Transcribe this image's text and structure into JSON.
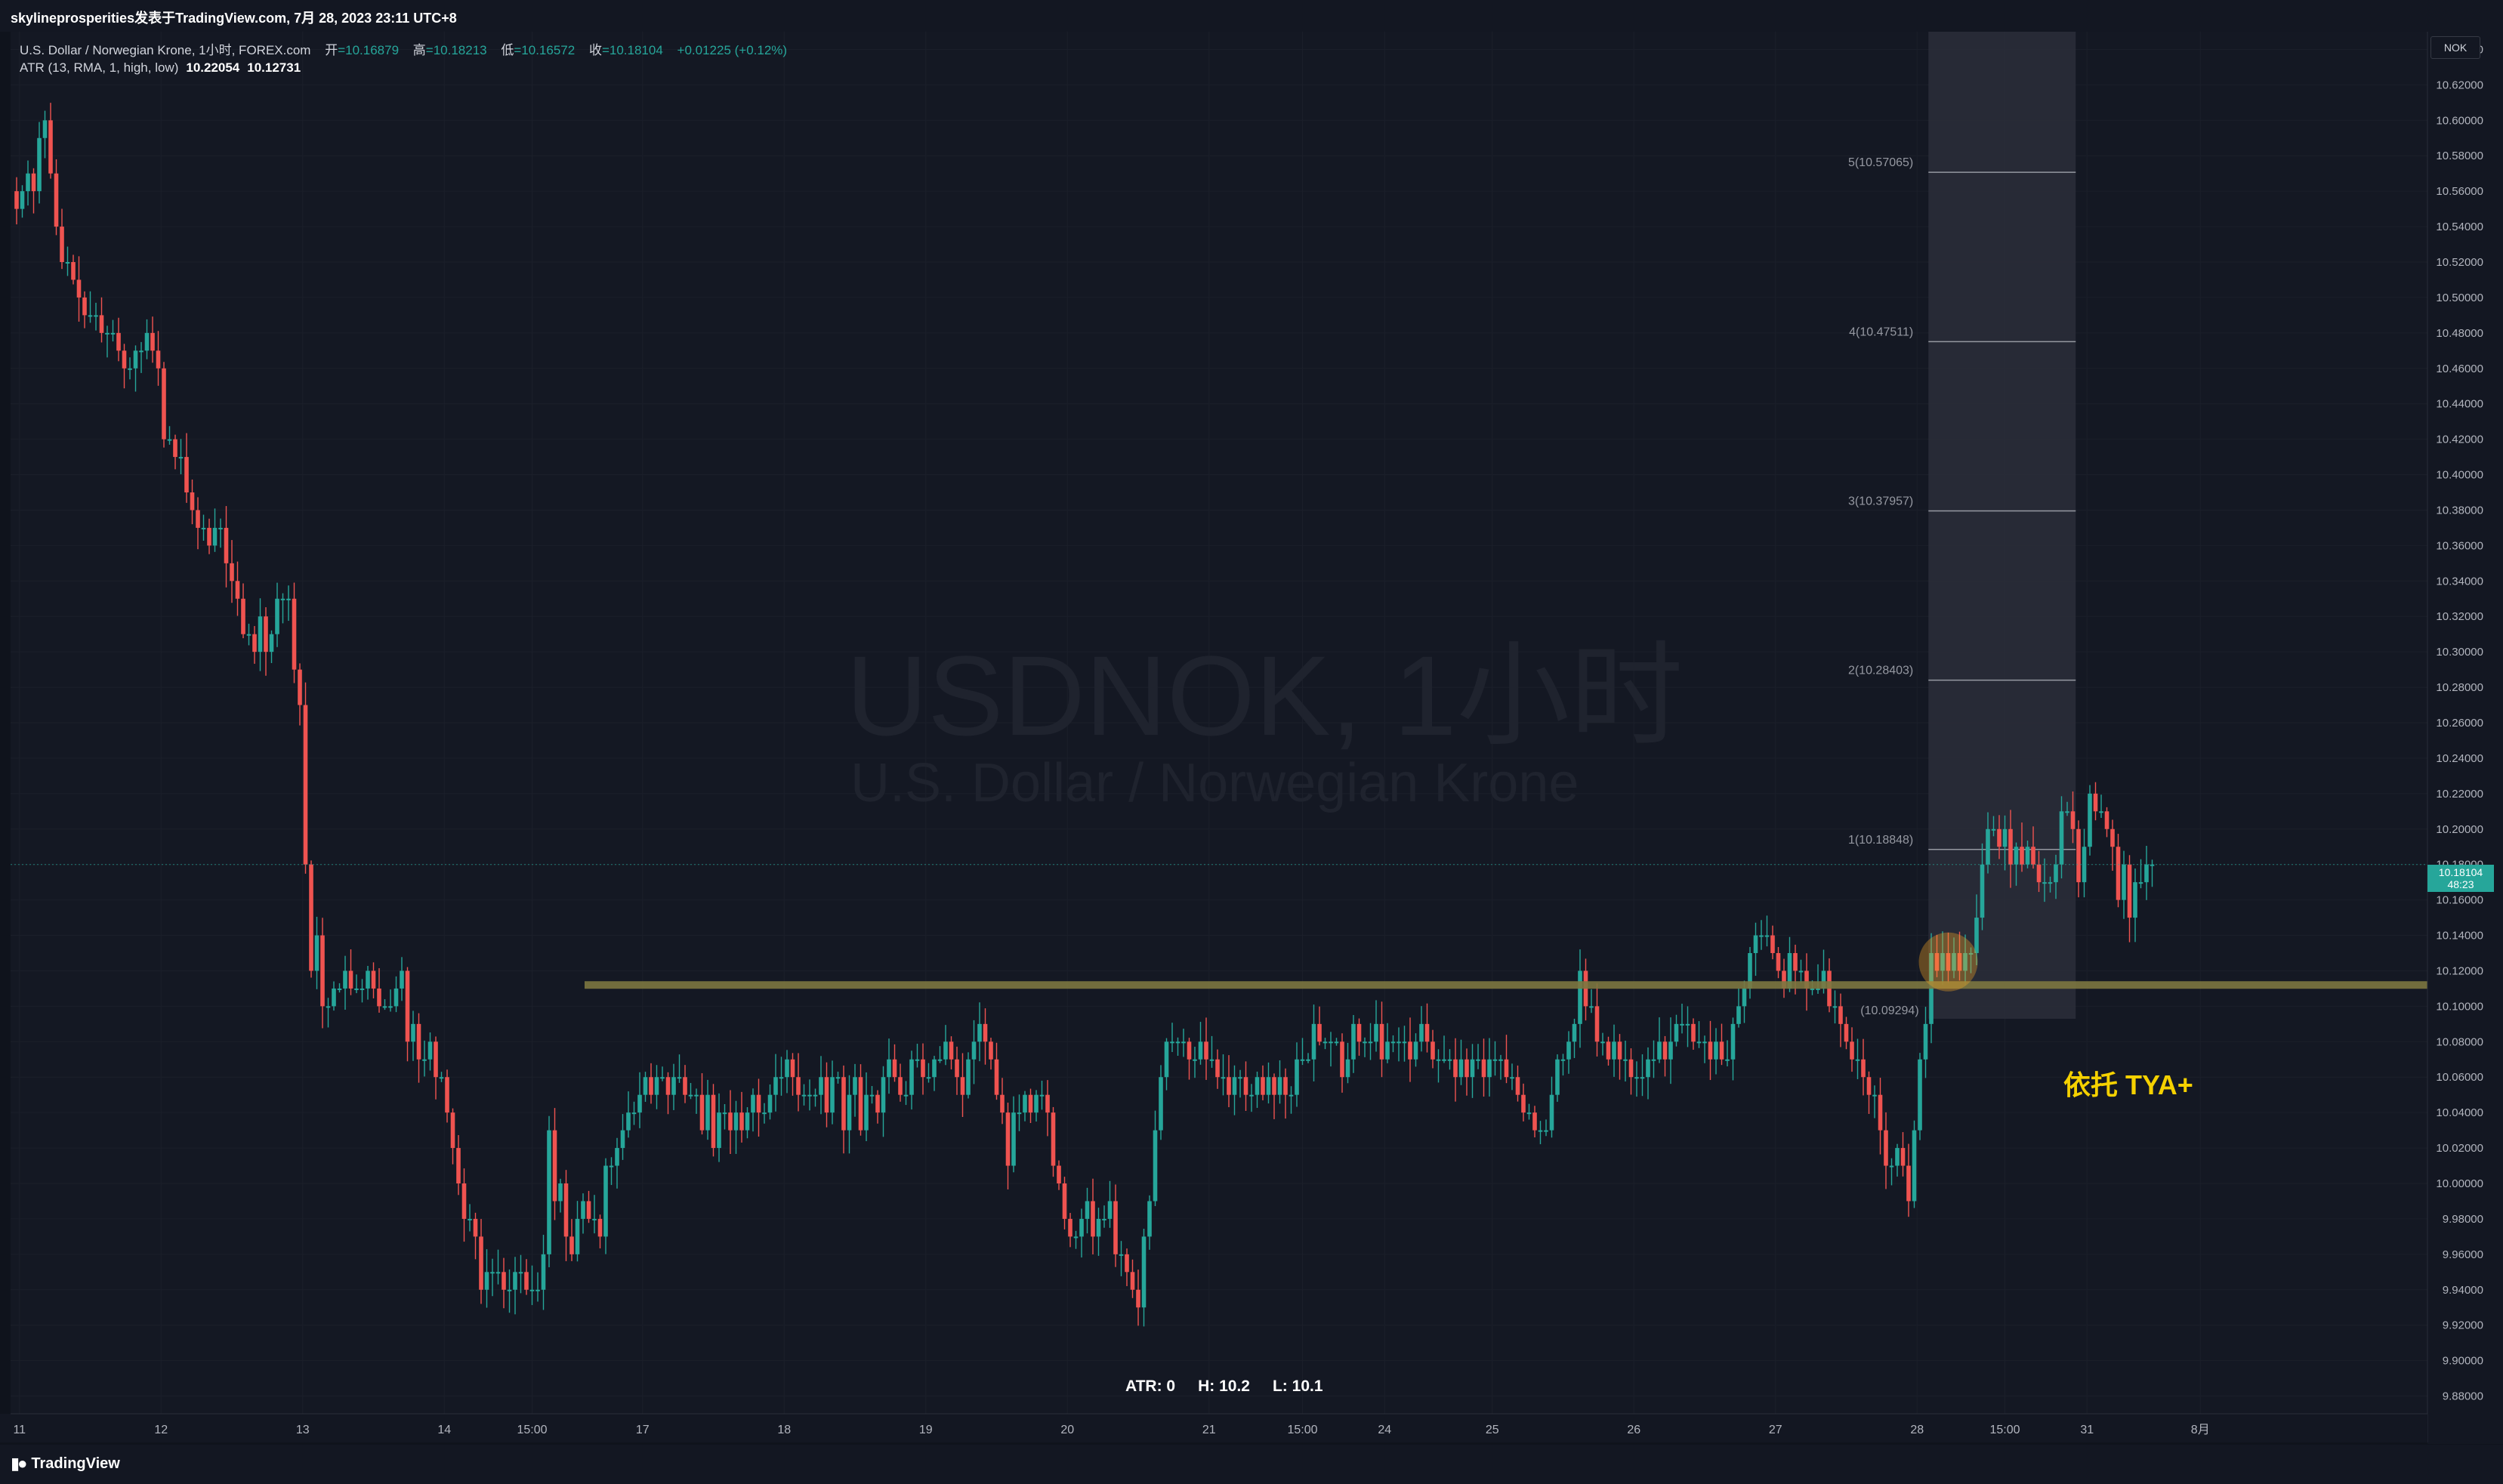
{
  "header": {
    "publisher": "skylineprosperities发表于TradingView.com, 7月 28, 2023 23:11 UTC+8"
  },
  "legend": {
    "symbol_desc": "U.S. Dollar / Norwegian Krone, 1小时, FOREX.com",
    "open_label": "开",
    "open": "=10.16879",
    "high_label": "高",
    "high": "=10.18213",
    "low_label": "低",
    "low": "=10.16572",
    "close_label": "收",
    "close": "=10.18104",
    "change": "+0.01225 (+0.12%)",
    "atr_label": "ATR (13, RMA, 1, high, low)",
    "atr_val1": "10.22054",
    "atr_val2": "10.12731"
  },
  "watermark": {
    "title": "USDNOK, 1小时",
    "subtitle": "U.S. Dollar / Norwegian Krone"
  },
  "currency_button": "NOK",
  "last_price": {
    "price": "10.18104",
    "countdown": "48:23"
  },
  "stats": {
    "atr": "ATR: 0",
    "high": "H: 10.2",
    "low": "L: 10.1"
  },
  "annotation": "依托 TYA+",
  "footer": {
    "brand": "TradingView"
  },
  "colors": {
    "up": "#26a69a",
    "down": "#ef5350",
    "support_line": "#7d7740",
    "annotation": "#f5d100"
  },
  "chart_data": {
    "type": "candlestick",
    "symbol": "USDNOK",
    "timeframe": "1小时",
    "ylim": [
      9.87,
      10.65
    ],
    "y_ticks": [
      9.88,
      9.9,
      9.92,
      9.94,
      9.96,
      9.98,
      10.0,
      10.02,
      10.04,
      10.06,
      10.08,
      10.1,
      10.12,
      10.14,
      10.16,
      10.18,
      10.2,
      10.22,
      10.24,
      10.26,
      10.28,
      10.3,
      10.32,
      10.34,
      10.36,
      10.38,
      10.4,
      10.42,
      10.44,
      10.46,
      10.48,
      10.5,
      10.52,
      10.54,
      10.56,
      10.58,
      10.6,
      10.62,
      10.64
    ],
    "x_ticks": [
      {
        "label": "11",
        "pos": 0.5
      },
      {
        "label": "12",
        "pos": 25.5
      },
      {
        "label": "13",
        "pos": 50.5
      },
      {
        "label": "14",
        "pos": 75.5
      },
      {
        "label": "15:00",
        "pos": 91
      },
      {
        "label": "17",
        "pos": 110.5
      },
      {
        "label": "18",
        "pos": 135.5
      },
      {
        "label": "19",
        "pos": 160.5
      },
      {
        "label": "20",
        "pos": 185.5
      },
      {
        "label": "21",
        "pos": 210.5
      },
      {
        "label": "15:00",
        "pos": 227
      },
      {
        "label": "24",
        "pos": 241.5
      },
      {
        "label": "25",
        "pos": 260.5
      },
      {
        "label": "26",
        "pos": 285.5
      },
      {
        "label": "27",
        "pos": 310.5
      },
      {
        "label": "28",
        "pos": 335.5
      },
      {
        "label": "15:00",
        "pos": 351
      },
      {
        "label": "31",
        "pos": 365.5
      },
      {
        "label": "8月",
        "pos": 385.5
      }
    ],
    "support_level": 10.112,
    "fib_levels": [
      {
        "label": "(10.09294)",
        "value": 10.09294
      },
      {
        "label": "1(10.18848)",
        "value": 10.18848
      },
      {
        "label": "2(10.28403)",
        "value": 10.28403
      },
      {
        "label": "3(10.37957)",
        "value": 10.37957
      },
      {
        "label": "4(10.47511)",
        "value": 10.47511
      },
      {
        "label": "5(10.57065)",
        "value": 10.57065
      }
    ],
    "closes": [
      10.55,
      10.56,
      10.57,
      10.56,
      10.59,
      10.6,
      10.57,
      10.54,
      10.52,
      10.52,
      10.51,
      10.5,
      10.49,
      10.49,
      10.49,
      10.48,
      10.48,
      10.48,
      10.47,
      10.46,
      10.46,
      10.47,
      10.47,
      10.48,
      10.47,
      10.46,
      10.42,
      10.42,
      10.41,
      10.41,
      10.39,
      10.38,
      10.37,
      10.37,
      10.36,
      10.37,
      10.37,
      10.35,
      10.34,
      10.33,
      10.31,
      10.31,
      10.3,
      10.32,
      10.3,
      10.31,
      10.33,
      10.33,
      10.33,
      10.29,
      10.27,
      10.18,
      10.12,
      10.14,
      10.1,
      10.1,
      10.11,
      10.11,
      10.12,
      10.11,
      10.11,
      10.11,
      10.12,
      10.11,
      10.1,
      10.1,
      10.1,
      10.11,
      10.12,
      10.08,
      10.09,
      10.07,
      10.07,
      10.08,
      10.06,
      10.06,
      10.04,
      10.02,
      10.0,
      9.98,
      9.98,
      9.97,
      9.94,
      9.95,
      9.95,
      9.95,
      9.94,
      9.94,
      9.95,
      9.95,
      9.94,
      9.94,
      9.94,
      9.96,
      10.03,
      9.99,
      10.0,
      9.97,
      9.96,
      9.98,
      9.99,
      9.98,
      9.98,
      9.97,
      10.01,
      10.01,
      10.02,
      10.03,
      10.04,
      10.04,
      10.05,
      10.06,
      10.05,
      10.06,
      10.06,
      10.05,
      10.06,
      10.06,
      10.05,
      10.05,
      10.05,
      10.03,
      10.05,
      10.02,
      10.04,
      10.04,
      10.03,
      10.04,
      10.03,
      10.04,
      10.05,
      10.04,
      10.04,
      10.05,
      10.06,
      10.06,
      10.07,
      10.06,
      10.05,
      10.05,
      10.05,
      10.05,
      10.06,
      10.04,
      10.06,
      10.06,
      10.03,
      10.05,
      10.06,
      10.03,
      10.05,
      10.05,
      10.04,
      10.06,
      10.07,
      10.06,
      10.05,
      10.05,
      10.07,
      10.07,
      10.06,
      10.06,
      10.07,
      10.07,
      10.08,
      10.07,
      10.06,
      10.05,
      10.07,
      10.08,
      10.09,
      10.08,
      10.07,
      10.05,
      10.04,
      10.01,
      10.04,
      10.04,
      10.05,
      10.04,
      10.05,
      10.05,
      10.04,
      10.01,
      10.0,
      9.98,
      9.97,
      9.97,
      9.98,
      9.99,
      9.97,
      9.98,
      9.98,
      9.99,
      9.96,
      9.96,
      9.95,
      9.94,
      9.93,
      9.97,
      9.99,
      10.03,
      10.06,
      10.08,
      10.08,
      10.08,
      10.08,
      10.07,
      10.07,
      10.08,
      10.07,
      10.07,
      10.06,
      10.06,
      10.05,
      10.06,
      10.06,
      10.05,
      10.05,
      10.06,
      10.05,
      10.06,
      10.05,
      10.06,
      10.05,
      10.05,
      10.07,
      10.07,
      10.07,
      10.09,
      10.08,
      10.08,
      10.08,
      10.08,
      10.06,
      10.07,
      10.09,
      10.08,
      10.08,
      10.08,
      10.09,
      10.07,
      10.08,
      10.08,
      10.08,
      10.08,
      10.07,
      10.08,
      10.09,
      10.08,
      10.07,
      10.07,
      10.07,
      10.07,
      10.06,
      10.07,
      10.06,
      10.07,
      10.07,
      10.06,
      10.07,
      10.07,
      10.07,
      10.06,
      10.06,
      10.05,
      10.04,
      10.04,
      10.03,
      10.03,
      10.03,
      10.05,
      10.07,
      10.07,
      10.08,
      10.09,
      10.12,
      10.1,
      10.1,
      10.08,
      10.08,
      10.07,
      10.08,
      10.07,
      10.07,
      10.06,
      10.06,
      10.06,
      10.07,
      10.07,
      10.08,
      10.07,
      10.08,
      10.09,
      10.09,
      10.09,
      10.08,
      10.08,
      10.08,
      10.07,
      10.08,
      10.07,
      10.07,
      10.09,
      10.1,
      10.11,
      10.13,
      10.14,
      10.14,
      10.14,
      10.13,
      10.12,
      10.11,
      10.13,
      10.12,
      10.12,
      10.11,
      10.11,
      10.11,
      10.12,
      10.1,
      10.1,
      10.09,
      10.08,
      10.07,
      10.07,
      10.06,
      10.05,
      10.05,
      10.03,
      10.01,
      10.01,
      10.02,
      10.01,
      9.99,
      10.03,
      10.07,
      10.09,
      10.13,
      10.12,
      10.13,
      10.12,
      10.13,
      10.12,
      10.13,
      10.13,
      10.15,
      10.18,
      10.2,
      10.2,
      10.19,
      10.2,
      10.18,
      10.19,
      10.18,
      10.19,
      10.18,
      10.17,
      10.17,
      10.17,
      10.18,
      10.21,
      10.21,
      10.2,
      10.17,
      10.19,
      10.22,
      10.21,
      10.21,
      10.2,
      10.19,
      10.16,
      10.18,
      10.15,
      10.17,
      10.17,
      10.18,
      10.18
    ],
    "fib_zone": {
      "start_index": 337.5,
      "end_index": 363.5,
      "top": 10.65,
      "bottom": 10.0929
    },
    "marker": {
      "index": 341,
      "price": 10.125
    }
  }
}
